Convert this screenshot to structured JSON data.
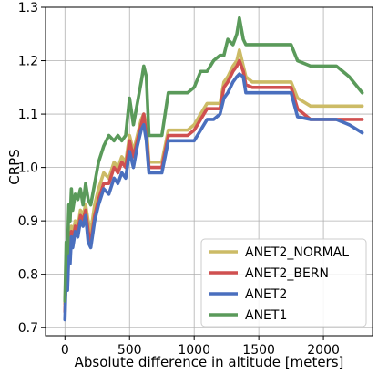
{
  "chart_data": {
    "type": "line",
    "xlabel": "Absolute difference in altitude [meters]",
    "ylabel": "CRPS",
    "xlim": [
      -150,
      2380
    ],
    "ylim": [
      0.685,
      1.3
    ],
    "xticks": [
      0,
      500,
      1000,
      1500,
      2000
    ],
    "yticks": [
      0.7,
      0.8,
      0.9,
      1.0,
      1.1,
      1.2,
      1.3
    ],
    "xtick_labels": [
      "0",
      "500",
      "1000",
      "1500",
      "2000"
    ],
    "ytick_labels": [
      "0.7",
      "0.8",
      "0.9",
      "1.0",
      "1.1",
      "1.2",
      "1.3"
    ],
    "grid": true,
    "legend_position": "lower-right",
    "series": [
      {
        "name": "ANET2_NORMAL",
        "color": "#ccbb66",
        "x": [
          0,
          10,
          20,
          30,
          40,
          50,
          60,
          80,
          100,
          120,
          140,
          160,
          180,
          200,
          230,
          260,
          300,
          340,
          380,
          410,
          440,
          470,
          500,
          530,
          560,
          590,
          610,
          630,
          650,
          700,
          750,
          800,
          850,
          900,
          950,
          1000,
          1050,
          1100,
          1150,
          1200,
          1230,
          1260,
          1300,
          1330,
          1350,
          1380,
          1400,
          1450,
          1500,
          1600,
          1700,
          1750,
          1800,
          1900,
          2000,
          2100,
          2200,
          2300
        ],
        "y": [
          0.745,
          0.82,
          0.79,
          0.86,
          0.84,
          0.89,
          0.87,
          0.9,
          0.89,
          0.92,
          0.91,
          0.93,
          0.9,
          0.88,
          0.93,
          0.96,
          0.99,
          0.98,
          1.01,
          1.0,
          1.02,
          1.01,
          1.06,
          1.03,
          1.06,
          1.09,
          1.1,
          1.08,
          1.01,
          1.01,
          1.01,
          1.07,
          1.07,
          1.07,
          1.07,
          1.08,
          1.1,
          1.12,
          1.12,
          1.12,
          1.16,
          1.17,
          1.19,
          1.2,
          1.22,
          1.19,
          1.17,
          1.16,
          1.16,
          1.16,
          1.16,
          1.16,
          1.13,
          1.115,
          1.115,
          1.115,
          1.115,
          1.115
        ]
      },
      {
        "name": "ANET2_BERN",
        "color": "#d05050",
        "x": [
          0,
          10,
          20,
          30,
          40,
          50,
          60,
          80,
          100,
          120,
          140,
          160,
          180,
          200,
          230,
          260,
          300,
          340,
          380,
          410,
          440,
          470,
          500,
          530,
          560,
          590,
          610,
          630,
          650,
          700,
          750,
          800,
          850,
          900,
          950,
          1000,
          1050,
          1100,
          1150,
          1200,
          1230,
          1260,
          1300,
          1330,
          1350,
          1380,
          1400,
          1450,
          1500,
          1600,
          1700,
          1750,
          1800,
          1900,
          2000,
          2100,
          2200,
          2300
        ],
        "y": [
          0.73,
          0.81,
          0.78,
          0.85,
          0.83,
          0.88,
          0.86,
          0.89,
          0.88,
          0.91,
          0.9,
          0.92,
          0.88,
          0.86,
          0.91,
          0.94,
          0.97,
          0.97,
          1.0,
          0.99,
          1.01,
          1.0,
          1.05,
          1.02,
          1.05,
          1.08,
          1.1,
          1.06,
          1.0,
          1.0,
          1.0,
          1.06,
          1.06,
          1.06,
          1.06,
          1.07,
          1.09,
          1.11,
          1.11,
          1.11,
          1.15,
          1.16,
          1.18,
          1.19,
          1.2,
          1.18,
          1.155,
          1.15,
          1.15,
          1.15,
          1.15,
          1.15,
          1.11,
          1.09,
          1.09,
          1.09,
          1.09,
          1.09
        ]
      },
      {
        "name": "ANET2",
        "color": "#4a6fbe",
        "x": [
          0,
          10,
          20,
          30,
          40,
          50,
          60,
          80,
          100,
          120,
          140,
          160,
          180,
          200,
          230,
          260,
          300,
          340,
          380,
          410,
          440,
          470,
          500,
          530,
          560,
          590,
          610,
          630,
          650,
          700,
          750,
          800,
          850,
          900,
          950,
          1000,
          1050,
          1100,
          1150,
          1200,
          1230,
          1260,
          1300,
          1330,
          1350,
          1380,
          1400,
          1450,
          1500,
          1600,
          1700,
          1750,
          1800,
          1900,
          2000,
          2100,
          2200,
          2300
        ],
        "y": [
          0.715,
          0.8,
          0.77,
          0.84,
          0.82,
          0.87,
          0.85,
          0.88,
          0.87,
          0.9,
          0.89,
          0.91,
          0.86,
          0.85,
          0.9,
          0.93,
          0.96,
          0.95,
          0.98,
          0.97,
          0.99,
          0.98,
          1.03,
          1.0,
          1.04,
          1.07,
          1.08,
          1.05,
          0.99,
          0.99,
          0.99,
          1.05,
          1.05,
          1.05,
          1.05,
          1.05,
          1.07,
          1.09,
          1.09,
          1.1,
          1.13,
          1.14,
          1.16,
          1.17,
          1.175,
          1.17,
          1.14,
          1.14,
          1.14,
          1.14,
          1.14,
          1.14,
          1.095,
          1.09,
          1.09,
          1.09,
          1.08,
          1.065
        ]
      },
      {
        "name": "ANET1",
        "color": "#5a9a5a",
        "x": [
          0,
          10,
          20,
          30,
          40,
          50,
          60,
          80,
          100,
          120,
          140,
          160,
          180,
          200,
          230,
          260,
          300,
          340,
          380,
          410,
          440,
          470,
          500,
          530,
          560,
          590,
          610,
          630,
          650,
          700,
          750,
          800,
          850,
          900,
          950,
          1000,
          1050,
          1100,
          1150,
          1200,
          1230,
          1260,
          1300,
          1330,
          1350,
          1380,
          1400,
          1450,
          1500,
          1600,
          1700,
          1750,
          1800,
          1900,
          2000,
          2100,
          2200,
          2300
        ],
        "y": [
          0.75,
          0.86,
          0.84,
          0.93,
          0.9,
          0.96,
          0.92,
          0.95,
          0.94,
          0.96,
          0.93,
          0.97,
          0.94,
          0.93,
          0.97,
          1.01,
          1.04,
          1.06,
          1.05,
          1.06,
          1.05,
          1.06,
          1.13,
          1.08,
          1.12,
          1.16,
          1.19,
          1.17,
          1.06,
          1.06,
          1.06,
          1.14,
          1.14,
          1.14,
          1.14,
          1.15,
          1.18,
          1.18,
          1.2,
          1.21,
          1.21,
          1.24,
          1.23,
          1.25,
          1.28,
          1.24,
          1.23,
          1.23,
          1.23,
          1.23,
          1.23,
          1.23,
          1.2,
          1.19,
          1.19,
          1.19,
          1.17,
          1.14
        ]
      }
    ]
  }
}
